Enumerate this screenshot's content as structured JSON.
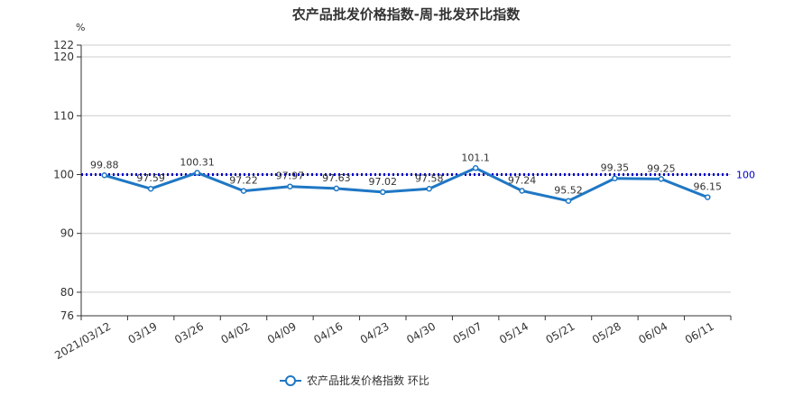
{
  "chart_data": {
    "type": "line",
    "title": "农产品批发价格指数-周-批发环比指数",
    "ylabel": "%",
    "categories": [
      "2021/03/12",
      "03/19",
      "03/26",
      "04/02",
      "04/09",
      "04/16",
      "04/23",
      "04/30",
      "05/07",
      "05/14",
      "05/21",
      "05/28",
      "06/04",
      "06/11"
    ],
    "series": [
      {
        "name": "农产品批发价格指数  环比",
        "values": [
          99.88,
          97.59,
          100.31,
          97.22,
          97.97,
          97.63,
          97.02,
          97.58,
          101.1,
          97.24,
          95.52,
          99.35,
          99.25,
          96.15
        ]
      }
    ],
    "data_labels": [
      "99.88",
      "97.59",
      "100.31",
      "97.22",
      "97.97",
      "97.63",
      "97.02",
      "97.58",
      "101.1",
      "97.24",
      "95.52",
      "99.35",
      "99.25",
      "96.15"
    ],
    "ylim": [
      76,
      122
    ],
    "yticks": [
      76,
      80,
      90,
      100,
      110,
      120,
      122
    ],
    "reference_line": {
      "value": 100,
      "label": "100",
      "color": "#0000cc",
      "style": "dotted"
    },
    "series_color": "#1f77c4",
    "grid": true,
    "legend_position": "bottom-center"
  }
}
